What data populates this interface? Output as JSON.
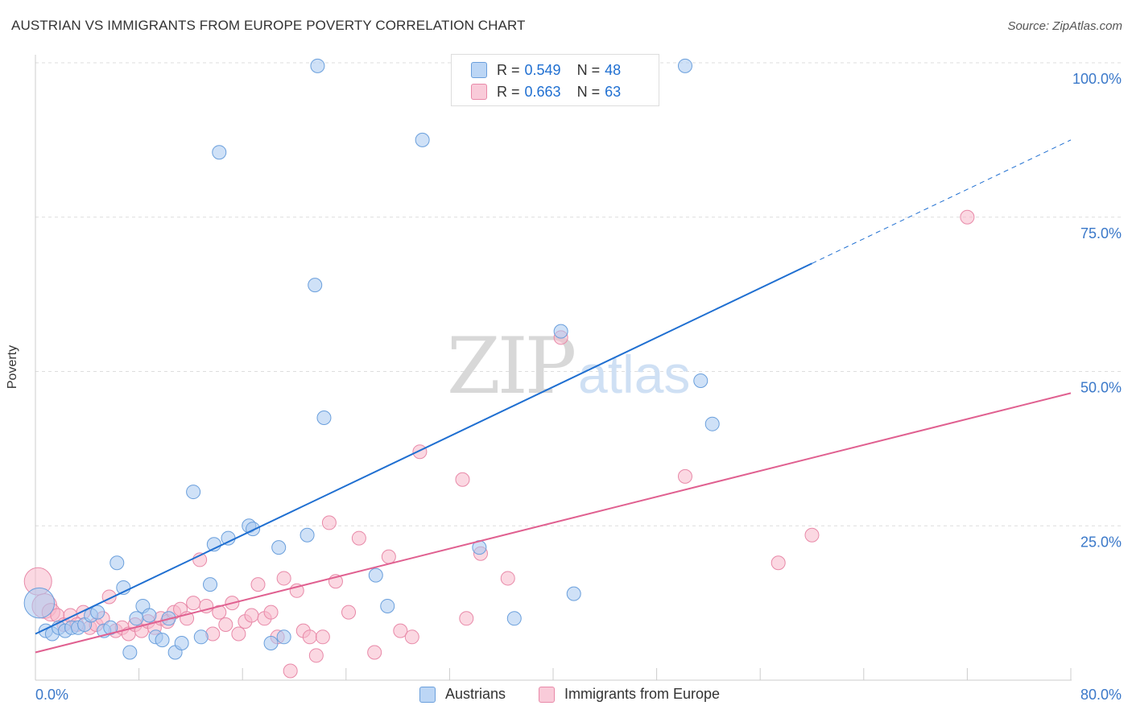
{
  "header": {
    "title": "AUSTRIAN VS IMMIGRANTS FROM EUROPE POVERTY CORRELATION CHART",
    "source": "Source: ZipAtlas.com"
  },
  "watermark": {
    "zip": "ZIP",
    "atlas": "atlas"
  },
  "legend": {
    "rows": [
      {
        "r_label": "R =",
        "r_value": "0.549",
        "n_label": "N =",
        "n_value": "48"
      },
      {
        "r_label": "R =",
        "r_value": "0.663",
        "n_label": "N =",
        "n_value": "63"
      }
    ]
  },
  "colors": {
    "austrians_fill": "#a8c8f0",
    "austrians_stroke": "#6a9fdc",
    "austrians_line": "#1f6fd1",
    "immigrants_fill": "#f7b8cb",
    "immigrants_stroke": "#e889a8",
    "immigrants_line": "#e06090",
    "axis_text": "#3a78c9",
    "grid": "#dddddd"
  },
  "chart_data": {
    "type": "scatter",
    "title": "AUSTRIAN VS IMMIGRANTS FROM EUROPE POVERTY CORRELATION CHART",
    "xlabel": "",
    "ylabel": "Poverty",
    "xlim": [
      0,
      80
    ],
    "ylim": [
      0,
      100
    ],
    "x_tick_labels": [
      "0.0%",
      "80.0%"
    ],
    "y_ticks": [
      25,
      50,
      75,
      100
    ],
    "y_tick_labels": [
      "25.0%",
      "50.0%",
      "75.0%",
      "100.0%"
    ],
    "grid": true,
    "legend_position": "top-center",
    "series": [
      {
        "name": "Austrians",
        "r": 0.549,
        "n": 48,
        "trend": {
          "x0": 0,
          "y0": 7.5,
          "x1": 60,
          "y1": 67.5,
          "dashed_to_x": 80,
          "dashed_to_y": 87.5
        },
        "points": [
          [
            0.3,
            12.5,
            2.2
          ],
          [
            0.8,
            8,
            1
          ],
          [
            1.3,
            7.5,
            1
          ],
          [
            1.8,
            8.5,
            1
          ],
          [
            2.3,
            8,
            1
          ],
          [
            2.8,
            8.5,
            1
          ],
          [
            3.3,
            8.5,
            1
          ],
          [
            3.8,
            9,
            1
          ],
          [
            4.3,
            10.5,
            1
          ],
          [
            4.8,
            11,
            1
          ],
          [
            5.3,
            8,
            1
          ],
          [
            5.8,
            8.5,
            1
          ],
          [
            6.3,
            19,
            1
          ],
          [
            6.8,
            15,
            1
          ],
          [
            7.3,
            4.5,
            1
          ],
          [
            7.8,
            10,
            1
          ],
          [
            8.3,
            12,
            1
          ],
          [
            8.8,
            10.5,
            1
          ],
          [
            9.3,
            7,
            1
          ],
          [
            9.8,
            6.5,
            1
          ],
          [
            10.3,
            10,
            1
          ],
          [
            10.8,
            4.5,
            1
          ],
          [
            11.3,
            6,
            1
          ],
          [
            12.2,
            30.5,
            1
          ],
          [
            12.8,
            7,
            1
          ],
          [
            13.5,
            15.5,
            1
          ],
          [
            13.8,
            22,
            1
          ],
          [
            14.2,
            85.5,
            1
          ],
          [
            14.9,
            23,
            1
          ],
          [
            16.5,
            25,
            1
          ],
          [
            16.8,
            24.5,
            1
          ],
          [
            18.8,
            21.5,
            1
          ],
          [
            18.2,
            6,
            1
          ],
          [
            19.2,
            7,
            1
          ],
          [
            21.0,
            23.5,
            1
          ],
          [
            21.6,
            64,
            1
          ],
          [
            21.8,
            99.5,
            1
          ],
          [
            22.3,
            42.5,
            1
          ],
          [
            26.3,
            17,
            1
          ],
          [
            27.2,
            12,
            1
          ],
          [
            29.9,
            87.5,
            1
          ],
          [
            34.3,
            21.5,
            1
          ],
          [
            37.0,
            10,
            1
          ],
          [
            40.6,
            56.5,
            1
          ],
          [
            41.6,
            14,
            1
          ],
          [
            50.2,
            99.5,
            1
          ],
          [
            51.4,
            48.5,
            1
          ],
          [
            52.3,
            41.5,
            1
          ]
        ]
      },
      {
        "name": "Immigrants from Europe",
        "r": 0.663,
        "n": 63,
        "trend": {
          "x0": 0,
          "y0": 4.5,
          "x1": 80,
          "y1": 46.5
        },
        "points": [
          [
            0.2,
            16,
            2
          ],
          [
            0.7,
            12,
            1.8
          ],
          [
            1.2,
            11,
            1.3
          ],
          [
            1.7,
            10.5,
            1
          ],
          [
            2.2,
            9,
            1
          ],
          [
            2.7,
            10.5,
            1
          ],
          [
            3.2,
            9,
            1
          ],
          [
            3.7,
            11,
            1
          ],
          [
            4.2,
            8.5,
            1
          ],
          [
            4.7,
            9,
            1
          ],
          [
            5.2,
            10,
            1
          ],
          [
            5.7,
            13.5,
            1
          ],
          [
            6.2,
            8,
            1
          ],
          [
            6.7,
            8.5,
            1
          ],
          [
            7.2,
            7.5,
            1
          ],
          [
            7.7,
            9,
            1
          ],
          [
            8.2,
            8,
            1
          ],
          [
            8.7,
            9.5,
            1
          ],
          [
            9.2,
            8.5,
            1
          ],
          [
            9.7,
            10,
            1
          ],
          [
            10.2,
            9.5,
            1
          ],
          [
            10.7,
            11,
            1
          ],
          [
            11.2,
            11.5,
            1
          ],
          [
            11.7,
            10,
            1
          ],
          [
            12.2,
            12.5,
            1
          ],
          [
            12.7,
            19.5,
            1
          ],
          [
            13.2,
            12,
            1
          ],
          [
            13.7,
            7.5,
            1
          ],
          [
            14.2,
            11,
            1
          ],
          [
            14.7,
            9,
            1
          ],
          [
            15.2,
            12.5,
            1
          ],
          [
            15.7,
            7.5,
            1
          ],
          [
            16.2,
            9.5,
            1
          ],
          [
            16.7,
            10.5,
            1
          ],
          [
            17.2,
            15.5,
            1
          ],
          [
            17.7,
            10,
            1
          ],
          [
            18.2,
            11,
            1
          ],
          [
            18.7,
            7,
            1
          ],
          [
            19.2,
            16.5,
            1
          ],
          [
            19.7,
            1.5,
            1
          ],
          [
            20.2,
            14.5,
            1
          ],
          [
            20.7,
            8,
            1
          ],
          [
            21.2,
            7,
            1
          ],
          [
            21.7,
            4,
            1
          ],
          [
            22.2,
            7,
            1
          ],
          [
            22.7,
            25.5,
            1
          ],
          [
            23.2,
            16,
            1
          ],
          [
            24.2,
            11,
            1
          ],
          [
            25.0,
            23,
            1
          ],
          [
            26.2,
            4.5,
            1
          ],
          [
            27.3,
            20,
            1
          ],
          [
            28.2,
            8,
            1
          ],
          [
            29.1,
            7,
            1
          ],
          [
            29.7,
            37,
            1
          ],
          [
            33.0,
            32.5,
            1
          ],
          [
            33.3,
            10,
            1
          ],
          [
            34.4,
            20.5,
            1
          ],
          [
            36.5,
            16.5,
            1
          ],
          [
            40.6,
            55.5,
            1
          ],
          [
            50.2,
            33,
            1
          ],
          [
            57.4,
            19,
            1
          ],
          [
            60.0,
            23.5,
            1
          ],
          [
            72.0,
            75,
            1
          ]
        ]
      }
    ]
  }
}
